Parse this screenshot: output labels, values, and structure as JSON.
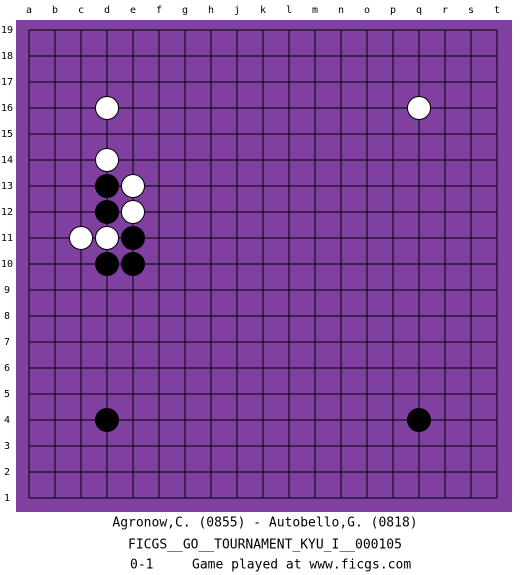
{
  "board": {
    "columns": [
      "a",
      "b",
      "c",
      "d",
      "e",
      "f",
      "g",
      "h",
      "j",
      "k",
      "l",
      "m",
      "n",
      "o",
      "p",
      "q",
      "r",
      "s",
      "t"
    ],
    "rows": [
      19,
      18,
      17,
      16,
      15,
      14,
      13,
      12,
      11,
      10,
      9,
      8,
      7,
      6,
      5,
      4,
      3,
      2,
      1
    ],
    "color": "#8040a0",
    "stones": [
      {
        "color": "white",
        "col": "d",
        "row": 16
      },
      {
        "color": "white",
        "col": "q",
        "row": 16
      },
      {
        "color": "white",
        "col": "d",
        "row": 14
      },
      {
        "color": "black",
        "col": "d",
        "row": 13
      },
      {
        "color": "white",
        "col": "e",
        "row": 13
      },
      {
        "color": "black",
        "col": "d",
        "row": 12
      },
      {
        "color": "white",
        "col": "e",
        "row": 12
      },
      {
        "color": "white",
        "col": "c",
        "row": 11
      },
      {
        "color": "white",
        "col": "d",
        "row": 11
      },
      {
        "color": "black",
        "col": "e",
        "row": 11
      },
      {
        "color": "black",
        "col": "d",
        "row": 10
      },
      {
        "color": "black",
        "col": "e",
        "row": 10
      },
      {
        "color": "black",
        "col": "d",
        "row": 4
      },
      {
        "color": "black",
        "col": "q",
        "row": 4
      }
    ]
  },
  "footer": {
    "players": "Agronow,C. (0855) - Autobello,G. (0818)",
    "event": "FICGS__GO__TOURNAMENT_KYU_I__000105",
    "result": "0-1",
    "site": "Game played at www.ficgs.com"
  }
}
